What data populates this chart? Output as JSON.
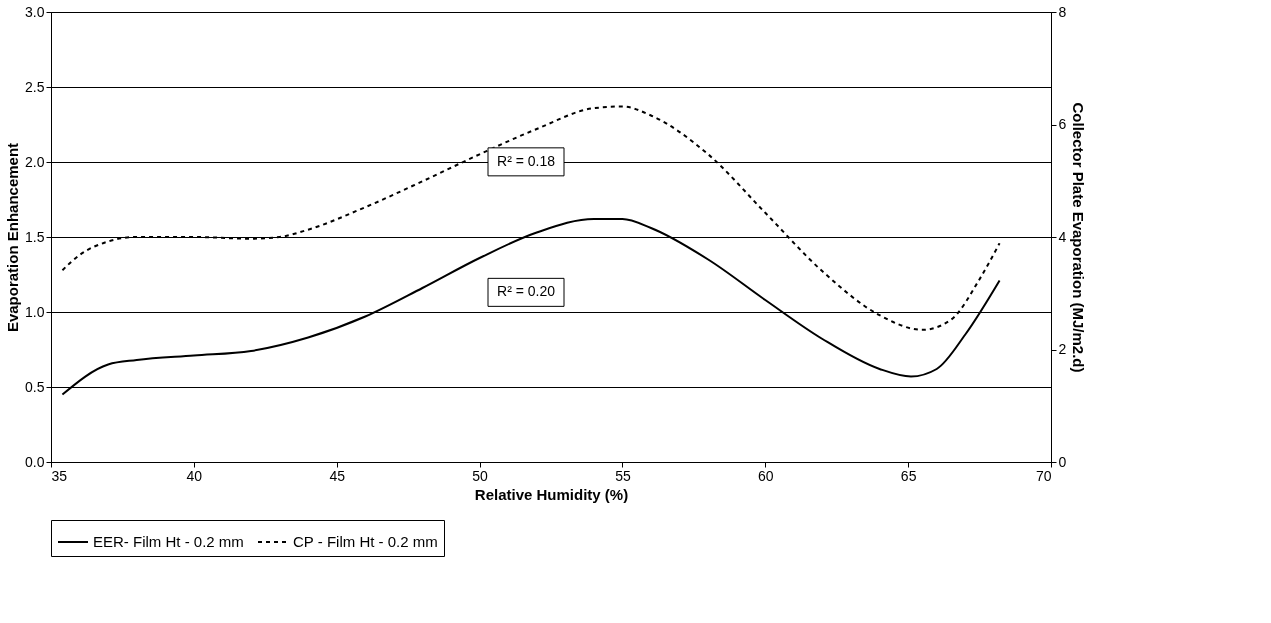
{
  "chart_data": {
    "type": "line",
    "xlabel": "Relative Humidity (%)",
    "ylabel": "Evaporation Enhancement",
    "y2label": "Collector Plate Evaporation (MJ/m2.d)",
    "xlim": [
      35,
      70
    ],
    "xticks": [
      35,
      40,
      45,
      50,
      55,
      60,
      65,
      70
    ],
    "ylim": [
      0,
      3
    ],
    "yticks": [
      {
        "value": 0,
        "label": "0.0"
      },
      {
        "value": 0.5,
        "label": "0.5"
      },
      {
        "value": 1,
        "label": "1.0"
      },
      {
        "value": 1.5,
        "label": "1.5"
      },
      {
        "value": 2,
        "label": "2.0"
      },
      {
        "value": 2.5,
        "label": "2.5"
      },
      {
        "value": 3,
        "label": "3.0"
      }
    ],
    "y2lim": [
      0,
      8
    ],
    "y2ticks": [
      0,
      2,
      4,
      6,
      8
    ],
    "grid": "y",
    "legend": "bottom",
    "marker": "none",
    "series": [
      {
        "name": "EER- Film Ht - 0.2 mm",
        "color": "#000000",
        "line_style": "solid",
        "axis": "y",
        "x": [
          35.4,
          37,
          38,
          40,
          42,
          44,
          46,
          48,
          50,
          52,
          54,
          55,
          56,
          58,
          60,
          62,
          64,
          65.1,
          66,
          67,
          68.2
        ],
        "values": [
          0.45,
          0.65,
          0.68,
          0.71,
          0.74,
          0.83,
          0.97,
          1.16,
          1.36,
          1.53,
          1.62,
          1.62,
          1.56,
          1.35,
          1.08,
          0.82,
          0.62,
          0.57,
          0.62,
          0.85,
          1.21
        ]
      },
      {
        "name": "CP - Film Ht - 0.2 mm",
        "color": "#000000",
        "line_style": "dashed",
        "axis": "y2",
        "x": [
          35.4,
          36,
          37,
          38,
          40,
          42,
          43,
          44,
          46,
          48,
          50,
          52,
          54,
          55,
          56,
          58,
          60,
          62,
          64,
          65.5,
          66.5,
          67.5,
          68.2
        ],
        "values": [
          3.41,
          3.68,
          3.92,
          4.0,
          4.0,
          3.97,
          4.0,
          4.13,
          4.53,
          4.99,
          5.47,
          5.92,
          6.29,
          6.32,
          6.16,
          5.47,
          4.43,
          3.39,
          2.61,
          2.35,
          2.53,
          3.25,
          3.89
        ]
      }
    ],
    "annotations": [
      "R² = 0.18",
      "R² = 0.20"
    ]
  }
}
